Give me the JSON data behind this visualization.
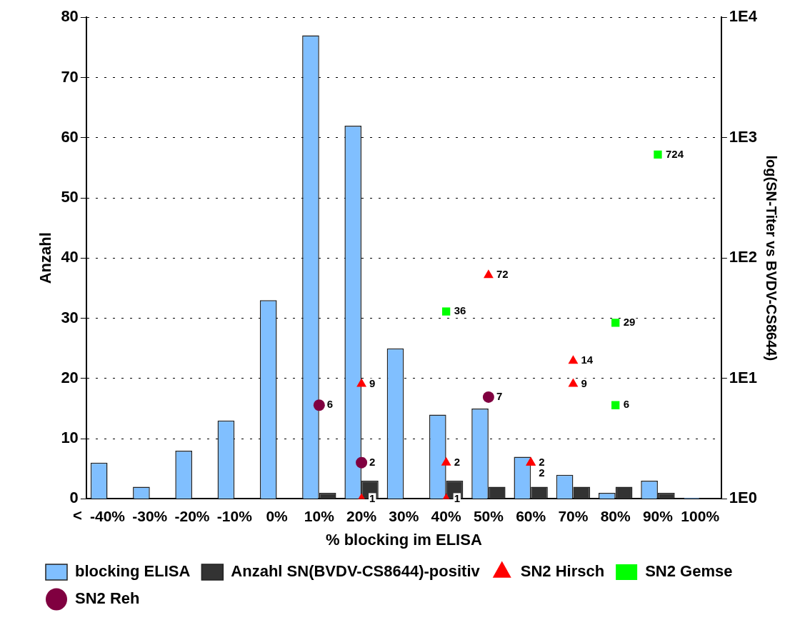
{
  "chart_data": {
    "type": "bar",
    "xlabel": "% blocking im ELISA",
    "ylabel": "Anzahl",
    "y2label": "log(SN-Titer vs BVDV-CS8644)",
    "categories": [
      "-40%",
      "-30%",
      "-20%",
      "-10%",
      "0%",
      "10%",
      "20%",
      "30%",
      "40%",
      "50%",
      "60%",
      "70%",
      "80%",
      "90%",
      "100%"
    ],
    "series": [
      {
        "name": "blocking ELISA",
        "color": "#80bfff",
        "values": [
          6,
          2,
          8,
          13,
          33,
          77,
          62,
          25,
          14,
          15,
          7,
          4,
          1,
          3,
          0.2
        ]
      },
      {
        "name": "Anzahl SN(BVDV-CS8644)-positiv",
        "color": "#333333",
        "values": [
          null,
          null,
          null,
          null,
          null,
          1,
          3,
          null,
          3,
          2,
          2,
          2,
          2,
          1,
          null
        ]
      },
      {
        "name": "SN2 Hirsch",
        "type": "scatter",
        "axis": "y2",
        "marker": "triangle",
        "color": "#ff0000",
        "x": [
          "20%",
          "20%",
          "40%",
          "40%",
          "50%",
          "60%",
          "60%",
          "70%",
          "70%"
        ],
        "values": [
          9,
          1,
          2,
          1,
          72,
          2,
          2,
          14,
          9
        ],
        "value_labels": [
          "9",
          "1",
          "2",
          "1",
          "72",
          "2",
          "2",
          "14",
          "9"
        ]
      },
      {
        "name": "SN2 Gemse",
        "type": "scatter",
        "axis": "y2",
        "marker": "square",
        "color": "#00ff00",
        "x": [
          "40%",
          "80%",
          "80%",
          "90%"
        ],
        "values": [
          36,
          29,
          6,
          724
        ],
        "value_labels": [
          "36",
          "29",
          "6",
          "724"
        ]
      },
      {
        "name": "SN2 Reh",
        "type": "scatter",
        "axis": "y2",
        "marker": "circle",
        "color": "#800040",
        "x": [
          "10%",
          "20%",
          "50%"
        ],
        "values": [
          6,
          2,
          7
        ],
        "value_labels": [
          "6",
          "2",
          "7"
        ]
      }
    ],
    "ylim": [
      0,
      80
    ],
    "yticks": [
      0,
      10,
      20,
      30,
      40,
      50,
      60,
      70,
      80
    ],
    "y2lim": [
      1,
      10000
    ],
    "y2ticks": [
      {
        "value": 1,
        "label": "1E0"
      },
      {
        "value": 10,
        "label": "1E1"
      },
      {
        "value": 100,
        "label": "1E2"
      },
      {
        "value": 1000,
        "label": "1E3"
      },
      {
        "value": 10000,
        "label": "1E4"
      }
    ],
    "log": "y2",
    "grid": "y",
    "legend": "bottom",
    "annotations": [
      "<"
    ]
  }
}
